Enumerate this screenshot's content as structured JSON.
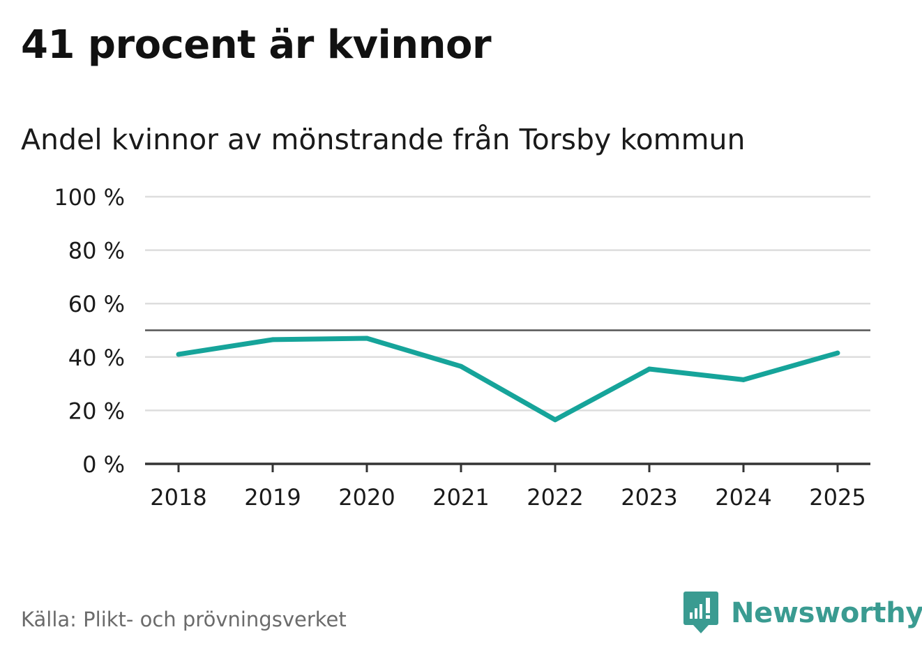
{
  "header": {
    "title": "41 procent är kvinnor",
    "subtitle": "Andel kvinnor av mönstrande från Torsby kommun"
  },
  "footer": {
    "source": "Källa: Plikt- och prövningsverket",
    "brand_name": "Newsworthy",
    "brand_icon": "newsworthy-logo-icon"
  },
  "colors": {
    "line": "#16a49a",
    "grid": "#dddddd",
    "reference": "#555555",
    "axis": "#333333",
    "brand": "#3a9b91"
  },
  "chart_data": {
    "type": "line",
    "title": "41 procent är kvinnor",
    "subtitle": "Andel kvinnor av mönstrande från Torsby kommun",
    "xlabel": "",
    "ylabel": "",
    "categories": [
      "2018",
      "2019",
      "2020",
      "2021",
      "2022",
      "2023",
      "2024",
      "2025"
    ],
    "series": [
      {
        "values": [
          41,
          46.5,
          47,
          36.5,
          16.5,
          35.5,
          31.5,
          41.5
        ]
      }
    ],
    "ylim": [
      0,
      100
    ],
    "yticks": [
      0,
      20,
      40,
      60,
      80,
      100
    ],
    "ytick_labels": [
      "0 %",
      "20 %",
      "40 %",
      "60 %",
      "80 %",
      "100 %"
    ],
    "reference_line": 50,
    "grid": true,
    "legend": "none"
  }
}
